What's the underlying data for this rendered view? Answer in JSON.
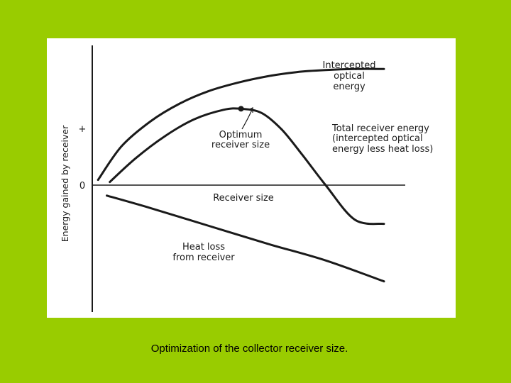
{
  "slide": {
    "background_color": "#99cc00",
    "caption": "Optimization of the collector receiver size."
  },
  "chart_data": {
    "type": "line",
    "title": "",
    "xlabel": "Receiver size",
    "ylabel": "Energy gained by receiver",
    "y_ticks": [
      "+",
      "0"
    ],
    "series": [
      {
        "name": "Intercepted optical energy",
        "x": [
          0.02,
          0.1,
          0.2,
          0.3,
          0.4,
          0.5,
          0.6,
          0.7,
          0.8,
          0.9,
          1.0
        ],
        "y": [
          0.05,
          0.37,
          0.61,
          0.78,
          0.9,
          0.98,
          1.04,
          1.08,
          1.1,
          1.11,
          1.11
        ]
      },
      {
        "name": "Total receiver energy (intercepted optical energy less heat loss)",
        "x": [
          0.06,
          0.15,
          0.25,
          0.35,
          0.45,
          0.51,
          0.58,
          0.65,
          0.72,
          0.8,
          0.9,
          1.0
        ],
        "y": [
          0.03,
          0.26,
          0.47,
          0.63,
          0.72,
          0.73,
          0.69,
          0.53,
          0.29,
          0.0,
          -0.33,
          -0.37
        ]
      },
      {
        "name": "Heat loss from receiver",
        "x": [
          0.05,
          0.2,
          0.4,
          0.6,
          0.8,
          1.0
        ],
        "y": [
          -0.1,
          -0.22,
          -0.39,
          -0.56,
          -0.72,
          -0.92
        ]
      }
    ],
    "annotations": [
      {
        "text": "Optimum",
        "line": 1
      },
      {
        "text": "receiver size",
        "line": 2
      }
    ],
    "curve_labels": {
      "intercepted": [
        "Intercepted",
        "optical",
        "energy"
      ],
      "total": [
        "Total receiver energy",
        "(intercepted optical",
        "energy less heat loss)"
      ],
      "heat_loss": [
        "Heat loss",
        "from receiver"
      ]
    },
    "optimum_point": {
      "x": 0.51,
      "y": 0.73
    },
    "xlim": [
      0,
      1.0
    ],
    "ylim": [
      -1.0,
      1.2
    ],
    "grid": false,
    "legend": "none"
  }
}
